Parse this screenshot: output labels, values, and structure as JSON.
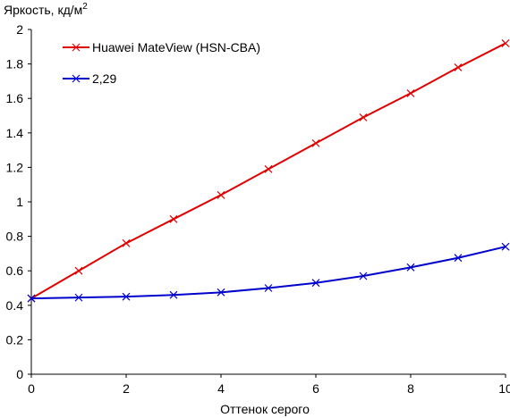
{
  "chart_data": {
    "type": "line",
    "ylabel": "Яркость, кд/м",
    "ylabel_sup": "2",
    "xlabel": "Оттенок серого",
    "xlim": [
      0,
      10
    ],
    "ylim": [
      0,
      2
    ],
    "x_ticks": [
      "0",
      "2",
      "4",
      "6",
      "8",
      "10"
    ],
    "y_ticks": [
      "0",
      "0.2",
      "0.4",
      "0.6",
      "0.8",
      "1",
      "1.2",
      "1.4",
      "1.6",
      "1.8",
      "2"
    ],
    "legend_position": "top-left",
    "grid": false,
    "x": [
      0,
      1,
      2,
      3,
      4,
      5,
      6,
      7,
      8,
      9,
      10
    ],
    "series": [
      {
        "name": "Huawei MateView (HSN-CBA)",
        "color": "#e00000",
        "values": [
          0.44,
          0.6,
          0.76,
          0.9,
          1.04,
          1.19,
          1.34,
          1.49,
          1.63,
          1.78,
          1.92
        ]
      },
      {
        "name": "2,29",
        "color": "#0000cc",
        "values": [
          0.44,
          0.445,
          0.45,
          0.46,
          0.475,
          0.5,
          0.53,
          0.57,
          0.62,
          0.675,
          0.74
        ]
      }
    ]
  }
}
